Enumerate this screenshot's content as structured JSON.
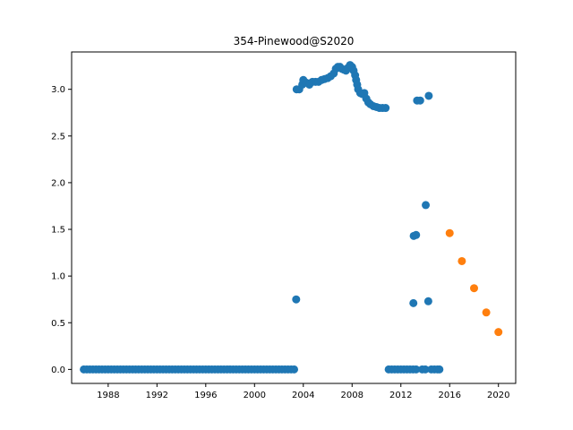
{
  "chart_data": {
    "type": "scatter",
    "title": "354-Pinewood@S2020",
    "xlabel": "",
    "ylabel": "",
    "x_axis_type": "date",
    "xlim": [
      "1985-01-01",
      "2021-06-01"
    ],
    "ylim": [
      -0.15,
      3.4
    ],
    "x_ticks": [
      "1988",
      "1992",
      "1996",
      "2000",
      "2004",
      "2008",
      "2012",
      "2016",
      "2020"
    ],
    "y_ticks": [
      "0.0",
      "0.5",
      "1.0",
      "1.5",
      "2.0",
      "2.5",
      "3.0"
    ],
    "grid": false,
    "series": [
      {
        "color": "#1f77b4",
        "points": [
          [
            "1986-01-01",
            0
          ],
          [
            "1986-04-01",
            0
          ],
          [
            "1986-07-01",
            0
          ],
          [
            "1986-10-01",
            0
          ],
          [
            "1987-01-01",
            0
          ],
          [
            "1987-04-01",
            0
          ],
          [
            "1987-07-01",
            0
          ],
          [
            "1987-10-01",
            0
          ],
          [
            "1988-01-01",
            0
          ],
          [
            "1988-04-01",
            0
          ],
          [
            "1988-07-01",
            0
          ],
          [
            "1988-10-01",
            0
          ],
          [
            "1989-01-01",
            0
          ],
          [
            "1989-04-01",
            0
          ],
          [
            "1989-07-01",
            0
          ],
          [
            "1989-10-01",
            0
          ],
          [
            "1990-01-01",
            0
          ],
          [
            "1990-04-01",
            0
          ],
          [
            "1990-07-01",
            0
          ],
          [
            "1990-10-01",
            0
          ],
          [
            "1991-01-01",
            0
          ],
          [
            "1991-04-01",
            0
          ],
          [
            "1991-07-01",
            0
          ],
          [
            "1991-10-01",
            0
          ],
          [
            "1992-01-01",
            0
          ],
          [
            "1992-04-01",
            0
          ],
          [
            "1992-07-01",
            0
          ],
          [
            "1992-10-01",
            0
          ],
          [
            "1993-01-01",
            0
          ],
          [
            "1993-04-01",
            0
          ],
          [
            "1993-07-01",
            0
          ],
          [
            "1993-10-01",
            0
          ],
          [
            "1994-01-01",
            0
          ],
          [
            "1994-04-01",
            0
          ],
          [
            "1994-07-01",
            0
          ],
          [
            "1994-10-01",
            0
          ],
          [
            "1995-01-01",
            0
          ],
          [
            "1995-04-01",
            0
          ],
          [
            "1995-07-01",
            0
          ],
          [
            "1995-10-01",
            0
          ],
          [
            "1996-01-01",
            0
          ],
          [
            "1996-04-01",
            0
          ],
          [
            "1996-07-01",
            0
          ],
          [
            "1996-10-01",
            0
          ],
          [
            "1997-01-01",
            0
          ],
          [
            "1997-04-01",
            0
          ],
          [
            "1997-07-01",
            0
          ],
          [
            "1997-10-01",
            0
          ],
          [
            "1998-01-01",
            0
          ],
          [
            "1998-04-01",
            0
          ],
          [
            "1998-07-01",
            0
          ],
          [
            "1998-10-01",
            0
          ],
          [
            "1999-01-01",
            0
          ],
          [
            "1999-04-01",
            0
          ],
          [
            "1999-07-01",
            0
          ],
          [
            "1999-10-01",
            0
          ],
          [
            "2000-01-01",
            0
          ],
          [
            "2000-04-01",
            0
          ],
          [
            "2000-07-01",
            0
          ],
          [
            "2000-10-01",
            0
          ],
          [
            "2001-01-01",
            0
          ],
          [
            "2001-04-01",
            0
          ],
          [
            "2001-07-01",
            0
          ],
          [
            "2001-10-01",
            0
          ],
          [
            "2002-01-01",
            0
          ],
          [
            "2002-04-01",
            0
          ],
          [
            "2002-07-01",
            0
          ],
          [
            "2002-10-01",
            0
          ],
          [
            "2003-01-01",
            0
          ],
          [
            "2003-04-01",
            0
          ],
          [
            "2003-06-01",
            0.75
          ],
          [
            "2003-06-15",
            3.0
          ],
          [
            "2003-09-01",
            3.0
          ],
          [
            "2003-12-01",
            3.05
          ],
          [
            "2004-01-01",
            3.1
          ],
          [
            "2004-04-01",
            3.07
          ],
          [
            "2004-07-01",
            3.05
          ],
          [
            "2004-10-01",
            3.08
          ],
          [
            "2005-01-01",
            3.08
          ],
          [
            "2005-04-01",
            3.08
          ],
          [
            "2005-07-01",
            3.1
          ],
          [
            "2005-10-01",
            3.11
          ],
          [
            "2006-01-01",
            3.12
          ],
          [
            "2006-04-01",
            3.14
          ],
          [
            "2006-07-01",
            3.17
          ],
          [
            "2006-09-01",
            3.22
          ],
          [
            "2006-11-01",
            3.24
          ],
          [
            "2007-01-01",
            3.24
          ],
          [
            "2007-03-01",
            3.22
          ],
          [
            "2007-05-01",
            3.21
          ],
          [
            "2007-07-01",
            3.2
          ],
          [
            "2007-09-01",
            3.23
          ],
          [
            "2007-11-01",
            3.26
          ],
          [
            "2008-01-01",
            3.24
          ],
          [
            "2008-02-15",
            3.2
          ],
          [
            "2008-04-01",
            3.15
          ],
          [
            "2008-05-01",
            3.1
          ],
          [
            "2008-06-01",
            3.05
          ],
          [
            "2008-07-01",
            3.0
          ],
          [
            "2008-09-01",
            2.96
          ],
          [
            "2008-11-01",
            2.95
          ],
          [
            "2009-01-01",
            2.96
          ],
          [
            "2009-03-01",
            2.9
          ],
          [
            "2009-05-01",
            2.86
          ],
          [
            "2009-07-01",
            2.84
          ],
          [
            "2009-10-01",
            2.82
          ],
          [
            "2010-01-01",
            2.81
          ],
          [
            "2010-04-01",
            2.8
          ],
          [
            "2010-07-01",
            2.8
          ],
          [
            "2010-10-01",
            2.8
          ],
          [
            "2011-01-01",
            0
          ],
          [
            "2011-04-01",
            0
          ],
          [
            "2011-07-01",
            0
          ],
          [
            "2011-10-01",
            0
          ],
          [
            "2012-01-01",
            0
          ],
          [
            "2012-04-01",
            0
          ],
          [
            "2012-07-01",
            0
          ],
          [
            "2012-10-01",
            0
          ],
          [
            "2013-01-01",
            0
          ],
          [
            "2013-04-01",
            0
          ],
          [
            "2013-01-10",
            0.71
          ],
          [
            "2013-01-20",
            1.43
          ],
          [
            "2013-04-01",
            1.44
          ],
          [
            "2013-05-01",
            2.88
          ],
          [
            "2013-08-01",
            2.88
          ],
          [
            "2013-10-01",
            0
          ],
          [
            "2014-01-01",
            0
          ],
          [
            "2014-01-15",
            1.76
          ],
          [
            "2014-04-01",
            0.73
          ],
          [
            "2014-04-15",
            2.93
          ],
          [
            "2014-07-01",
            0
          ],
          [
            "2014-10-01",
            0
          ],
          [
            "2015-01-01",
            0
          ],
          [
            "2015-03-01",
            0
          ]
        ]
      },
      {
        "color": "#ff7f0e",
        "points": [
          [
            "2016-01-01",
            1.46
          ],
          [
            "2017-01-01",
            1.16
          ],
          [
            "2018-01-01",
            0.87
          ],
          [
            "2019-01-01",
            0.61
          ],
          [
            "2020-01-01",
            0.4
          ]
        ]
      }
    ]
  }
}
